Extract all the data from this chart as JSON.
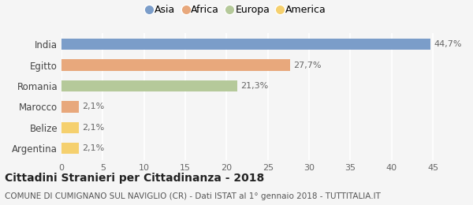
{
  "categories": [
    "Argentina",
    "Belize",
    "Marocco",
    "Romania",
    "Egitto",
    "India"
  ],
  "values": [
    2.1,
    2.1,
    2.1,
    21.3,
    27.7,
    44.7
  ],
  "colors": [
    "#f5d06e",
    "#f5d06e",
    "#e8a87c",
    "#b5c99a",
    "#e8a87c",
    "#7b9dc9"
  ],
  "bar_colors_legend": [
    "#7b9dc9",
    "#e8a87c",
    "#b5c99a",
    "#f5d06e"
  ],
  "legend_labels": [
    "Asia",
    "Africa",
    "Europa",
    "America"
  ],
  "labels": [
    "2,1%",
    "2,1%",
    "2,1%",
    "21,3%",
    "27,7%",
    "44,7%"
  ],
  "xlim": [
    0,
    47
  ],
  "xticks": [
    0,
    5,
    10,
    15,
    20,
    25,
    30,
    35,
    40,
    45
  ],
  "title": "Cittadini Stranieri per Cittadinanza - 2018",
  "subtitle": "COMUNE DI CUMIGNANO SUL NAVIGLIO (CR) - Dati ISTAT al 1° gennaio 2018 - TUTTITALIA.IT",
  "background_color": "#f5f5f5",
  "bar_height": 0.55,
  "title_fontsize": 10,
  "subtitle_fontsize": 7.5,
  "label_fontsize": 8,
  "ytick_fontsize": 8.5,
  "xtick_fontsize": 8,
  "label_color": "#666666",
  "ytick_color": "#444444",
  "xtick_color": "#666666"
}
